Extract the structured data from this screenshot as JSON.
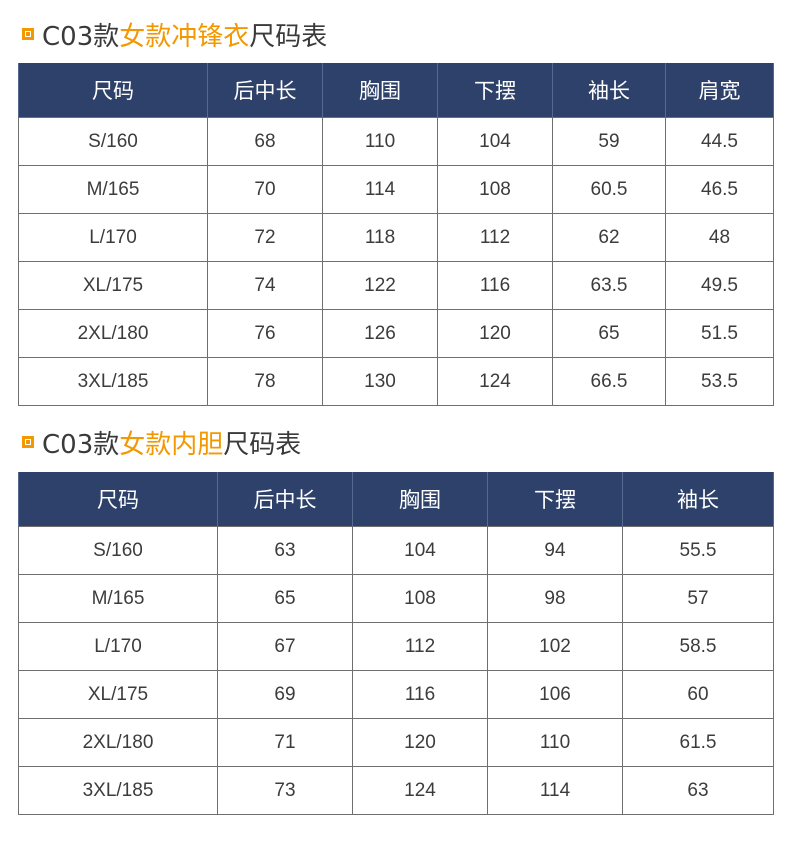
{
  "jacket": {
    "title_prefix": "C03款",
    "title_accent": "女款冲锋衣",
    "title_suffix": "尺码表",
    "headers": [
      "尺码",
      "后中长",
      "胸围",
      "下摆",
      "袖长",
      "肩宽"
    ],
    "rows": [
      [
        "S/160",
        "68",
        "110",
        "104",
        "59",
        "44.5"
      ],
      [
        "M/165",
        "70",
        "114",
        "108",
        "60.5",
        "46.5"
      ],
      [
        "L/170",
        "72",
        "118",
        "112",
        "62",
        "48"
      ],
      [
        "XL/175",
        "74",
        "122",
        "116",
        "63.5",
        "49.5"
      ],
      [
        "2XL/180",
        "76",
        "126",
        "120",
        "65",
        "51.5"
      ],
      [
        "3XL/185",
        "78",
        "130",
        "124",
        "66.5",
        "53.5"
      ]
    ]
  },
  "liner": {
    "title_prefix": "C03款",
    "title_accent": "女款内胆",
    "title_suffix": "尺码表",
    "headers": [
      "尺码",
      "后中长",
      "胸围",
      "下摆",
      "袖长"
    ],
    "rows": [
      [
        "S/160",
        "63",
        "104",
        "94",
        "55.5"
      ],
      [
        "M/165",
        "65",
        "108",
        "98",
        "57"
      ],
      [
        "L/170",
        "67",
        "112",
        "102",
        "58.5"
      ],
      [
        "XL/175",
        "69",
        "116",
        "106",
        "60"
      ],
      [
        "2XL/180",
        "71",
        "120",
        "110",
        "61.5"
      ],
      [
        "3XL/185",
        "73",
        "124",
        "114",
        "63"
      ]
    ]
  },
  "colors": {
    "header_bg": "#2e416a",
    "accent": "#f39800",
    "border": "#6f6f6f"
  }
}
